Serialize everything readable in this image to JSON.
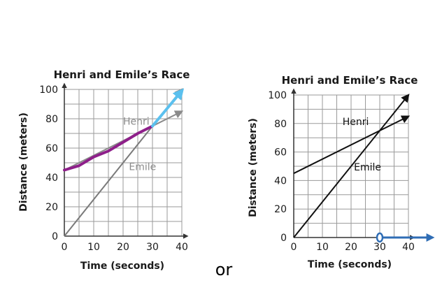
{
  "separator_text": "or",
  "colors": {
    "left_henri_line": "#8a8a8a",
    "left_emile_line": "#7a7a7a",
    "left_label": "#8a8a8a",
    "left_overlay_purple": "#8e1f8a",
    "left_overlay_blue": "#5bc0ee",
    "right_line": "#111111",
    "right_number_line": "#2f6db5",
    "grid": "#9a9a9a"
  },
  "chart_data": [
    {
      "type": "line",
      "title": "Henri and Emile’s Race",
      "xlabel": "Time (seconds)",
      "ylabel": "Distance (meters)",
      "xlim": [
        0,
        40
      ],
      "ylim": [
        0,
        100
      ],
      "x_ticks": [
        "0",
        "10",
        "20",
        "30",
        "40"
      ],
      "y_ticks": [
        "0",
        "20",
        "40",
        "60",
        "80",
        "100"
      ],
      "grid": true,
      "series": [
        {
          "name": "Henri",
          "x": [
            0,
            40
          ],
          "y": [
            45,
            85
          ]
        },
        {
          "name": "Emile",
          "x": [
            0,
            40
          ],
          "y": [
            0,
            100
          ]
        }
      ],
      "annotations": [
        {
          "kind": "hand-drawn highlight",
          "color": "purple",
          "x": [
            0,
            5,
            10,
            15,
            20,
            25,
            30
          ],
          "y": [
            45,
            48,
            54,
            58,
            64,
            70,
            75
          ]
        },
        {
          "kind": "hand-drawn arrow",
          "color": "light-blue",
          "x": [
            30,
            40
          ],
          "y": [
            75,
            100
          ]
        }
      ]
    },
    {
      "type": "line",
      "title": "Henri and Emile’s Race",
      "xlabel": "Time (seconds)",
      "ylabel": "Distance (meters)",
      "xlim": [
        0,
        40
      ],
      "ylim": [
        0,
        100
      ],
      "x_ticks": [
        "0",
        "10",
        "20",
        "30",
        "40"
      ],
      "y_ticks": [
        "0",
        "20",
        "40",
        "60",
        "80",
        "100"
      ],
      "grid": true,
      "series": [
        {
          "name": "Henri",
          "x": [
            0,
            40
          ],
          "y": [
            45,
            85
          ]
        },
        {
          "name": "Emile",
          "x": [
            0,
            40
          ],
          "y": [
            0,
            100
          ]
        }
      ],
      "annotations": [
        {
          "kind": "number-line ray",
          "color": "blue",
          "open_circle_at": 30,
          "direction": "right"
        }
      ]
    }
  ]
}
